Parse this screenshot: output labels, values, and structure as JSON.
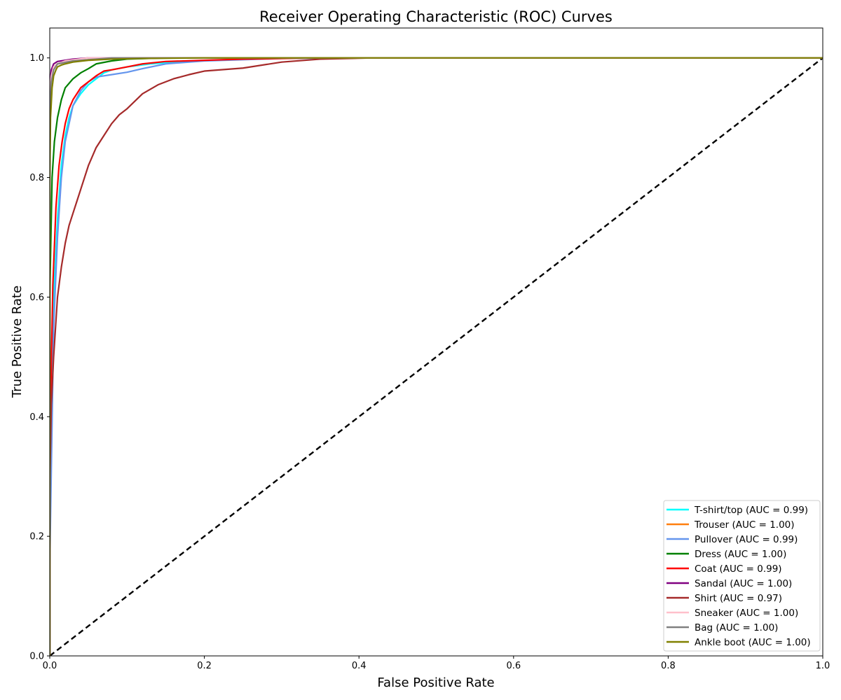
{
  "chart_data": {
    "type": "line",
    "title": "Receiver Operating Characteristic (ROC) Curves",
    "xlabel": "False Positive Rate",
    "ylabel": "True Positive Rate",
    "xlim": [
      0.0,
      1.0
    ],
    "ylim": [
      0.0,
      1.05
    ],
    "x_ticks": [
      "0.0",
      "0.2",
      "0.4",
      "0.6",
      "0.8",
      "1.0"
    ],
    "y_ticks": [
      "0.0",
      "0.2",
      "0.4",
      "0.6",
      "0.8",
      "1.0"
    ],
    "grid": false,
    "legend_position": "lower-right",
    "series": [
      {
        "name": "T-shirt/top (AUC = 0.99)",
        "color": "#00ffff",
        "x": [
          0.0,
          0.0,
          0.005,
          0.01,
          0.015,
          0.02,
          0.025,
          0.03,
          0.04,
          0.05,
          0.06,
          0.07,
          0.08,
          0.1,
          0.13,
          0.18,
          0.25,
          0.3,
          0.4,
          1.0
        ],
        "y": [
          0.0,
          0.3,
          0.6,
          0.73,
          0.82,
          0.87,
          0.9,
          0.92,
          0.94,
          0.955,
          0.965,
          0.975,
          0.98,
          0.985,
          0.99,
          0.995,
          0.998,
          1.0,
          1.0,
          1.0
        ]
      },
      {
        "name": "Trouser (AUC = 1.00)",
        "color": "#ff7f0e",
        "x": [
          0.0,
          0.0,
          0.002,
          0.005,
          0.01,
          0.03,
          0.1,
          1.0
        ],
        "y": [
          0.0,
          0.92,
          0.97,
          0.985,
          0.99,
          0.995,
          1.0,
          1.0
        ]
      },
      {
        "name": "Pullover (AUC = 0.99)",
        "color": "#6495ed",
        "x": [
          0.0,
          0.0,
          0.005,
          0.01,
          0.015,
          0.02,
          0.03,
          0.04,
          0.05,
          0.06,
          0.08,
          0.1,
          0.12,
          0.15,
          0.2,
          0.25,
          0.3,
          0.4,
          1.0
        ],
        "y": [
          0.0,
          0.15,
          0.55,
          0.7,
          0.8,
          0.86,
          0.92,
          0.945,
          0.96,
          0.968,
          0.972,
          0.976,
          0.982,
          0.99,
          0.995,
          0.997,
          0.999,
          1.0,
          1.0
        ]
      },
      {
        "name": "Dress (AUC = 1.00)",
        "color": "#008000",
        "x": [
          0.0,
          0.0,
          0.003,
          0.006,
          0.01,
          0.015,
          0.02,
          0.03,
          0.04,
          0.05,
          0.06,
          0.08,
          0.1,
          0.15,
          0.2,
          1.0
        ],
        "y": [
          0.0,
          0.6,
          0.8,
          0.86,
          0.9,
          0.93,
          0.95,
          0.965,
          0.975,
          0.982,
          0.99,
          0.995,
          0.998,
          1.0,
          1.0,
          1.0
        ]
      },
      {
        "name": "Coat (AUC = 0.99)",
        "color": "#ff0000",
        "x": [
          0.0,
          0.0,
          0.004,
          0.008,
          0.012,
          0.016,
          0.02,
          0.025,
          0.03,
          0.035,
          0.04,
          0.05,
          0.06,
          0.07,
          0.08,
          0.1,
          0.12,
          0.15,
          0.2,
          0.25,
          0.3,
          0.35,
          1.0
        ],
        "y": [
          0.0,
          0.35,
          0.62,
          0.75,
          0.82,
          0.86,
          0.89,
          0.915,
          0.93,
          0.94,
          0.95,
          0.96,
          0.97,
          0.978,
          0.98,
          0.985,
          0.99,
          0.994,
          0.996,
          0.998,
          0.999,
          1.0,
          1.0
        ]
      },
      {
        "name": "Sandal (AUC = 1.00)",
        "color": "#800080",
        "x": [
          0.0,
          0.0,
          0.002,
          0.005,
          0.01,
          0.02,
          0.03,
          0.04,
          0.05,
          0.1,
          1.0
        ],
        "y": [
          0.0,
          0.95,
          0.98,
          0.99,
          0.994,
          0.996,
          0.998,
          0.999,
          1.0,
          1.0,
          1.0
        ]
      },
      {
        "name": "Shirt (AUC = 0.97)",
        "color": "#a52a2a",
        "x": [
          0.0,
          0.0,
          0.002,
          0.005,
          0.008,
          0.01,
          0.015,
          0.02,
          0.025,
          0.03,
          0.035,
          0.04,
          0.05,
          0.06,
          0.07,
          0.08,
          0.09,
          0.1,
          0.12,
          0.14,
          0.16,
          0.18,
          0.2,
          0.25,
          0.3,
          0.35,
          0.42,
          1.0
        ],
        "y": [
          0.0,
          0.28,
          0.42,
          0.5,
          0.56,
          0.6,
          0.65,
          0.69,
          0.72,
          0.74,
          0.76,
          0.78,
          0.82,
          0.85,
          0.87,
          0.89,
          0.905,
          0.915,
          0.94,
          0.955,
          0.965,
          0.972,
          0.978,
          0.983,
          0.993,
          0.998,
          1.0,
          1.0
        ]
      },
      {
        "name": "Sneaker (AUC = 1.00)",
        "color": "#ffc0cb",
        "x": [
          0.0,
          0.0,
          0.002,
          0.005,
          0.01,
          0.02,
          0.05,
          1.0
        ],
        "y": [
          0.0,
          0.94,
          0.97,
          0.985,
          0.99,
          0.995,
          1.0,
          1.0
        ]
      },
      {
        "name": "Bag (AUC = 1.00)",
        "color": "#808080",
        "x": [
          0.0,
          0.0,
          0.002,
          0.005,
          0.01,
          0.03,
          0.08,
          1.0
        ],
        "y": [
          0.0,
          0.9,
          0.96,
          0.98,
          0.99,
          0.995,
          1.0,
          1.0
        ]
      },
      {
        "name": "Ankle boot (AUC = 1.00)",
        "color": "#808000",
        "x": [
          0.0,
          0.0,
          0.001,
          0.003,
          0.005,
          0.008,
          0.01,
          0.015,
          0.02,
          0.03,
          0.05,
          0.08,
          0.12,
          0.2,
          1.0
        ],
        "y": [
          0.0,
          0.8,
          0.9,
          0.95,
          0.97,
          0.98,
          0.985,
          0.988,
          0.99,
          0.993,
          0.996,
          0.998,
          0.999,
          1.0,
          1.0
        ]
      }
    ],
    "reference_line": {
      "color": "#000000",
      "x": [
        0.0,
        1.0
      ],
      "y": [
        0.0,
        1.0
      ]
    }
  }
}
